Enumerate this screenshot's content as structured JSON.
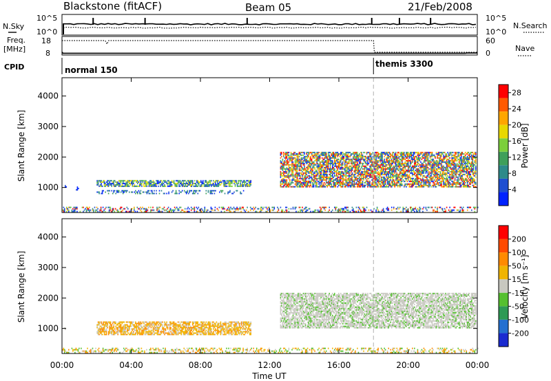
{
  "header": {
    "station": "Blackstone (fitACF)",
    "beam": "Beam 05",
    "date": "21/Feb/2008"
  },
  "colors": {
    "power_scale": [
      "#0022ff",
      "#1f4fd0",
      "#2e8a8a",
      "#3f9f5a",
      "#7ccf3c",
      "#e8d800",
      "#ffa600",
      "#ff5a00",
      "#ff0000"
    ],
    "velocity_scale": [
      "#1a2bd0",
      "#2470d0",
      "#2e9a55",
      "#55c030",
      "#c8c8c0",
      "#f0b400",
      "#ff8a00",
      "#ff4a00",
      "#ff0000"
    ],
    "frame": "#000000",
    "cpid_divider": "#b0b0b0"
  },
  "chart_data": [
    {
      "type": "line",
      "panel": "N.Sky / N.Search",
      "series": [
        {
          "name": "N.Sky",
          "style": "solid"
        },
        {
          "name": "N.Search",
          "style": "dotted"
        }
      ],
      "left_label": "N.Sky",
      "right_label": "N.Search",
      "left_ticks": [
        "10^5",
        "10^0"
      ],
      "right_ticks": [
        "10^5",
        "10^0"
      ]
    },
    {
      "type": "line",
      "panel": "Freq. / Nave",
      "series": [
        {
          "name": "Freq.",
          "style": "dotted",
          "x": [
            0,
            2.5,
            2.6,
            2.7,
            18,
            18.05,
            24
          ],
          "y": [
            18,
            18,
            15,
            18,
            18,
            8,
            8
          ]
        },
        {
          "name": "Nave",
          "style": "solid",
          "x": [
            0,
            0.05,
            23.3,
            23.4,
            24
          ],
          "y": [
            8,
            2,
            2,
            3,
            3
          ]
        }
      ],
      "left_label": "Freq.",
      "left_unit": "[MHz]",
      "right_label": "Nave",
      "left_ticks": [
        "18",
        "8"
      ],
      "right_ticks": [
        "60",
        "0"
      ]
    },
    {
      "type": "table",
      "panel": "CPID",
      "label": "CPID",
      "segments": [
        {
          "name": "normal 150",
          "start_h": 0,
          "end_h": 18
        },
        {
          "name": "themis 3300",
          "start_h": 18,
          "end_h": 24
        }
      ]
    },
    {
      "type": "heatmap",
      "panel": "power",
      "ylabel": "Slant Range [km]",
      "ylim": [
        180,
        4600
      ],
      "y_ticks": [
        "1000",
        "2000",
        "3000",
        "4000"
      ],
      "y_tick_values": [
        1000,
        2000,
        3000,
        4000
      ],
      "colorbar": {
        "label": "Power [dB]",
        "range": [
          0,
          30
        ],
        "ticks": [
          "4",
          "8",
          "12",
          "16",
          "20",
          "24",
          "28"
        ],
        "tick_values": [
          4,
          8,
          12,
          16,
          20,
          24,
          28
        ]
      },
      "echo_regions": [
        {
          "x": [
            0.1,
            0.3
          ],
          "y": [
            950,
            1050
          ],
          "palette": [
            0,
            1
          ]
        },
        {
          "x": [
            0.8,
            0.95
          ],
          "y": [
            900,
            1000
          ],
          "palette": [
            0,
            1
          ]
        },
        {
          "x": [
            2.0,
            10.9
          ],
          "y": [
            1020,
            1230
          ],
          "palette": [
            0,
            1,
            2,
            3,
            4,
            5
          ]
        },
        {
          "x": [
            2.0,
            10.5
          ],
          "y": [
            780,
            900
          ],
          "palette": [
            0,
            1,
            2,
            3
          ]
        },
        {
          "x": [
            12.6,
            23.9
          ],
          "y": [
            1000,
            2150
          ],
          "palette": [
            0,
            1,
            2,
            3,
            4,
            5,
            6,
            7,
            8
          ]
        },
        {
          "x": [
            0.0,
            24.0
          ],
          "y": [
            190,
            360
          ],
          "palette": [
            0,
            1,
            2,
            4,
            6,
            8
          ]
        }
      ]
    },
    {
      "type": "heatmap",
      "panel": "velocity",
      "xlabel": "Time UT",
      "ylabel": "Slant Range [km]",
      "ylim": [
        180,
        4600
      ],
      "y_ticks": [
        "1000",
        "2000",
        "3000",
        "4000"
      ],
      "y_tick_values": [
        1000,
        2000,
        3000,
        4000
      ],
      "x_ticks": [
        "00:00",
        "04:00",
        "08:00",
        "12:00",
        "16:00",
        "20:00",
        "00:00"
      ],
      "x_tick_values": [
        0,
        4,
        8,
        12,
        16,
        20,
        24
      ],
      "colorbar": {
        "label": "Velocity [m s⁻¹]",
        "range": [
          -250,
          250
        ],
        "ticks": [
          "200",
          "100",
          "50",
          "15",
          "-15",
          "-50",
          "-100",
          "-200"
        ]
      },
      "echo_regions": [
        {
          "x": [
            0.1,
            0.3
          ],
          "y": [
            950,
            1050
          ],
          "palette": [
            4
          ]
        },
        {
          "x": [
            2.0,
            10.9
          ],
          "y": [
            780,
            1230
          ],
          "palette": [
            4,
            5,
            5,
            6
          ]
        },
        {
          "x": [
            12.6,
            23.9
          ],
          "y": [
            1000,
            2150
          ],
          "palette": [
            4,
            4,
            4,
            4,
            3
          ]
        },
        {
          "x": [
            0.0,
            24.0
          ],
          "y": [
            190,
            360
          ],
          "palette": [
            3,
            5,
            6,
            4
          ]
        }
      ]
    }
  ]
}
